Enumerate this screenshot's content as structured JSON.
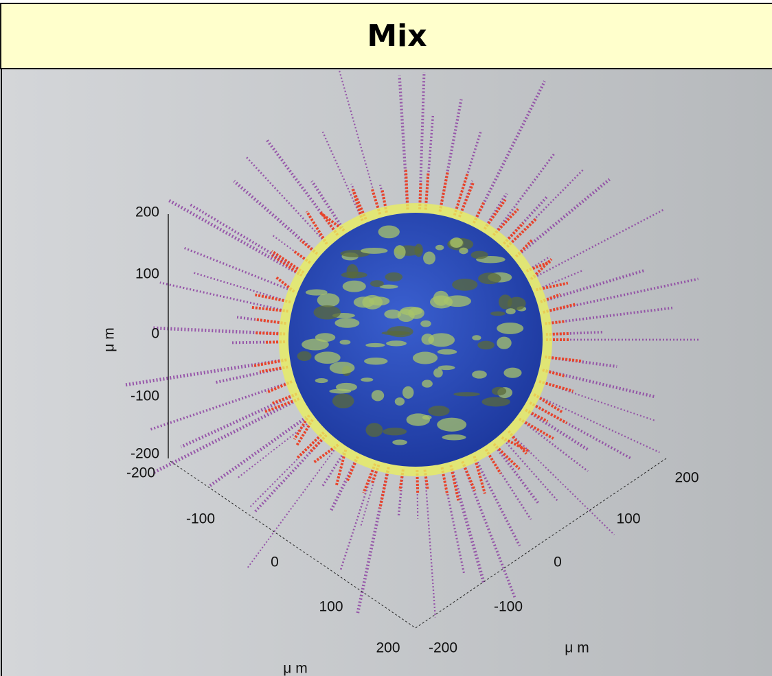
{
  "header": {
    "title": "Mix"
  },
  "plot": {
    "z_axis": {
      "label": "μ m",
      "ticks": [
        "200",
        "100",
        "0",
        "-100",
        "-200"
      ]
    },
    "x_axis": {
      "label": "μ m",
      "ticks": [
        "-200",
        "-100",
        "0",
        "100",
        "200"
      ]
    },
    "y_axis": {
      "label": "μ m",
      "ticks": [
        "-200",
        "-100",
        "0",
        "100",
        "200"
      ]
    }
  }
}
